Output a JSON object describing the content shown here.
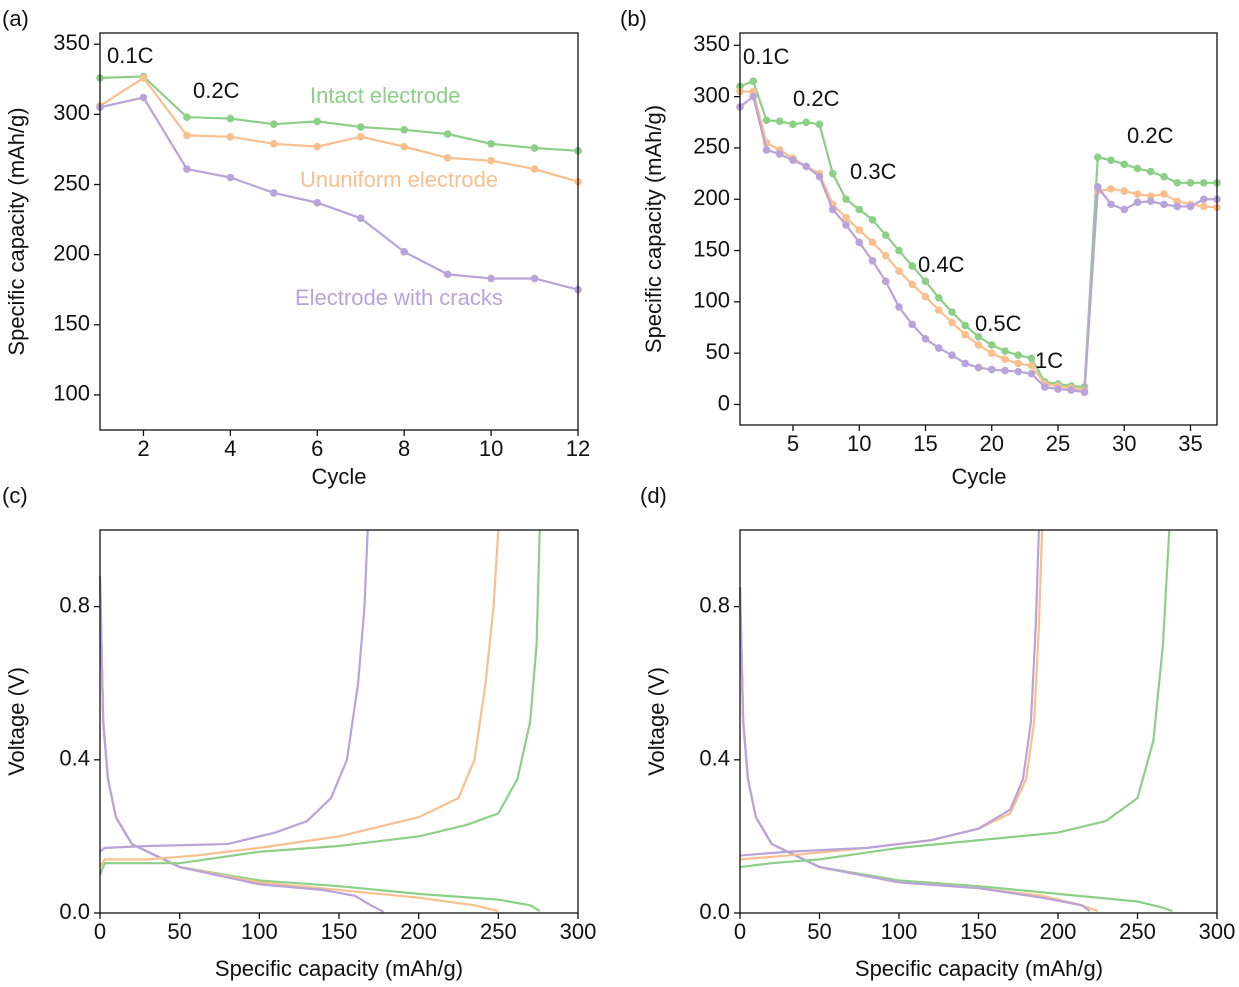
{
  "chart_data": [
    {
      "type": "line",
      "panel_label": "(a)",
      "x_label": "Cycle",
      "y_label": "Specific capacity (mAh/g)",
      "markers": true,
      "x": [
        1,
        2,
        3,
        4,
        5,
        6,
        7,
        8,
        9,
        10,
        11,
        12
      ],
      "xlim": [
        1,
        12
      ],
      "xticks": [
        2,
        4,
        6,
        8,
        10,
        12
      ],
      "ylim": [
        75,
        358
      ],
      "yticks": [
        100,
        150,
        200,
        250,
        300,
        350
      ],
      "series": [
        {
          "name": "Intact electrode",
          "color": "#8cd088",
          "values": [
            326,
            327,
            298,
            297,
            293,
            295,
            291,
            289,
            286,
            279,
            276,
            274
          ]
        },
        {
          "name": "Ununiform electrode",
          "color": "#f9c08e",
          "values": [
            306,
            326,
            285,
            284,
            279,
            277,
            284,
            277,
            269,
            267,
            261,
            252
          ]
        },
        {
          "name": "Electrode with cracks",
          "color": "#b9a3d9",
          "values": [
            305,
            312,
            261,
            255,
            244,
            237,
            226,
            202,
            186,
            183,
            183,
            175
          ]
        }
      ],
      "annotations": [
        "0.1C",
        "0.2C"
      ]
    },
    {
      "type": "line",
      "panel_label": "(b)",
      "x_label": "Cycle",
      "y_label": "Specific capacity (mAh/g)",
      "markers": true,
      "x": [
        1,
        2,
        3,
        4,
        5,
        6,
        7,
        8,
        9,
        10,
        11,
        12,
        13,
        14,
        15,
        16,
        17,
        18,
        19,
        20,
        21,
        22,
        23,
        24,
        25,
        26,
        27,
        28,
        29,
        30,
        31,
        32,
        33,
        34,
        35,
        36,
        37
      ],
      "xlim": [
        1,
        37
      ],
      "xticks": [
        5,
        10,
        15,
        20,
        25,
        30,
        35
      ],
      "ylim": [
        -20,
        362
      ],
      "yticks": [
        0,
        50,
        100,
        150,
        200,
        250,
        300,
        350
      ],
      "series": [
        {
          "color": "#8cd088",
          "values": [
            310,
            315,
            277,
            276,
            273,
            275,
            273,
            225,
            200,
            190,
            180,
            165,
            150,
            135,
            120,
            104,
            90,
            77,
            66,
            58,
            52,
            48,
            45,
            22,
            20,
            18,
            17,
            241,
            238,
            234,
            230,
            227,
            222,
            216,
            216,
            216,
            216
          ]
        },
        {
          "color": "#f9c08e",
          "values": [
            305,
            305,
            255,
            248,
            240,
            232,
            225,
            195,
            182,
            170,
            158,
            145,
            130,
            117,
            105,
            92,
            80,
            68,
            58,
            50,
            44,
            40,
            38,
            20,
            18,
            16,
            14,
            208,
            210,
            208,
            205,
            203,
            205,
            198,
            195,
            193,
            192
          ]
        },
        {
          "color": "#b9a3d9",
          "values": [
            290,
            300,
            248,
            244,
            238,
            232,
            222,
            190,
            175,
            158,
            140,
            120,
            95,
            78,
            64,
            55,
            48,
            40,
            36,
            34,
            33,
            32,
            30,
            17,
            15,
            14,
            12,
            212,
            195,
            190,
            197,
            198,
            195,
            193,
            193,
            200,
            200
          ]
        }
      ],
      "annotations": [
        "0.1C",
        "0.2C",
        "0.3C",
        "0.4C",
        "0.5C",
        "1C",
        "0.2C"
      ]
    },
    {
      "type": "line",
      "panel_label": "(c)",
      "x_label": "Specific capacity (mAh/g)",
      "y_label": "Voltage (V)",
      "markers": false,
      "xlim": [
        0,
        300
      ],
      "xticks": [
        0,
        50,
        100,
        150,
        200,
        250,
        300
      ],
      "ylim": [
        0,
        1.0
      ],
      "yticks": [
        {
          "value": 0,
          "label": "0.0"
        },
        0.4,
        0.8
      ],
      "series": [
        {
          "color": "#8cd088",
          "x": [
            0,
            2,
            5,
            10,
            20,
            30,
            50,
            100,
            150,
            200,
            250,
            270,
            276
          ],
          "values": [
            0.88,
            0.5,
            0.35,
            0.25,
            0.18,
            0.16,
            0.12,
            0.085,
            0.07,
            0.05,
            0.035,
            0.02,
            0.005
          ]
        },
        {
          "color": "#f9c08e",
          "x": [
            0,
            2,
            5,
            10,
            20,
            30,
            50,
            100,
            150,
            200,
            235,
            250
          ],
          "values": [
            0.85,
            0.5,
            0.35,
            0.25,
            0.18,
            0.16,
            0.12,
            0.08,
            0.06,
            0.04,
            0.02,
            0.005
          ]
        },
        {
          "color": "#b9a3d9",
          "x": [
            0,
            2,
            5,
            10,
            20,
            30,
            50,
            100,
            140,
            160,
            170,
            178
          ],
          "values": [
            0.88,
            0.5,
            0.35,
            0.25,
            0.18,
            0.16,
            0.12,
            0.075,
            0.06,
            0.045,
            0.02,
            0.003
          ]
        },
        {
          "color": "#8cd088",
          "x": [
            0,
            3,
            20,
            50,
            100,
            150,
            200,
            230,
            250,
            262,
            270,
            274,
            276
          ],
          "values": [
            0.1,
            0.13,
            0.13,
            0.13,
            0.16,
            0.175,
            0.2,
            0.23,
            0.26,
            0.35,
            0.5,
            0.7,
            1.0
          ]
        },
        {
          "color": "#f9c08e",
          "x": [
            0,
            3,
            30,
            60,
            100,
            150,
            200,
            225,
            235,
            242,
            247,
            250
          ],
          "values": [
            0.12,
            0.14,
            0.14,
            0.15,
            0.17,
            0.2,
            0.25,
            0.3,
            0.4,
            0.6,
            0.8,
            1.0
          ]
        },
        {
          "color": "#b9a3d9",
          "x": [
            0,
            3,
            30,
            80,
            110,
            130,
            145,
            155,
            162,
            166,
            168
          ],
          "values": [
            0.16,
            0.17,
            0.175,
            0.18,
            0.21,
            0.24,
            0.3,
            0.4,
            0.6,
            0.8,
            1.0
          ]
        }
      ]
    },
    {
      "type": "line",
      "panel_label": "(d)",
      "x_label": "Specific capacity (mAh/g)",
      "y_label": "Voltage (V)",
      "markers": false,
      "xlim": [
        0,
        300
      ],
      "xticks": [
        0,
        50,
        100,
        150,
        200,
        250,
        300
      ],
      "ylim": [
        0,
        1.0
      ],
      "yticks": [
        {
          "value": 0,
          "label": "0.0"
        },
        0.4,
        0.8
      ],
      "series": [
        {
          "color": "#8cd088",
          "x": [
            0,
            2,
            5,
            10,
            20,
            30,
            50,
            100,
            150,
            200,
            250,
            265,
            272
          ],
          "values": [
            0.85,
            0.5,
            0.35,
            0.25,
            0.18,
            0.16,
            0.12,
            0.085,
            0.07,
            0.05,
            0.03,
            0.015,
            0.005
          ]
        },
        {
          "color": "#f9c08e",
          "x": [
            0,
            2,
            5,
            10,
            20,
            30,
            50,
            100,
            150,
            190,
            215,
            225
          ],
          "values": [
            0.82,
            0.5,
            0.35,
            0.25,
            0.18,
            0.16,
            0.12,
            0.08,
            0.065,
            0.045,
            0.02,
            0.005
          ]
        },
        {
          "color": "#b9a3d9",
          "x": [
            0,
            2,
            5,
            10,
            20,
            30,
            50,
            100,
            150,
            190,
            215,
            220
          ],
          "values": [
            0.85,
            0.5,
            0.35,
            0.25,
            0.18,
            0.16,
            0.12,
            0.08,
            0.065,
            0.04,
            0.02,
            0.005
          ]
        },
        {
          "color": "#8cd088",
          "x": [
            0,
            20,
            50,
            100,
            150,
            200,
            230,
            250,
            260,
            266,
            270
          ],
          "values": [
            0.12,
            0.13,
            0.14,
            0.17,
            0.19,
            0.21,
            0.24,
            0.3,
            0.45,
            0.7,
            1.0
          ]
        },
        {
          "color": "#f9c08e",
          "x": [
            0,
            30,
            80,
            120,
            150,
            170,
            180,
            185,
            188,
            190
          ],
          "values": [
            0.14,
            0.15,
            0.17,
            0.19,
            0.22,
            0.26,
            0.35,
            0.5,
            0.75,
            1.0
          ]
        },
        {
          "color": "#b9a3d9",
          "x": [
            0,
            30,
            80,
            120,
            150,
            170,
            178,
            183,
            186,
            188
          ],
          "values": [
            0.15,
            0.16,
            0.17,
            0.19,
            0.22,
            0.27,
            0.35,
            0.5,
            0.75,
            1.0
          ]
        }
      ]
    }
  ]
}
